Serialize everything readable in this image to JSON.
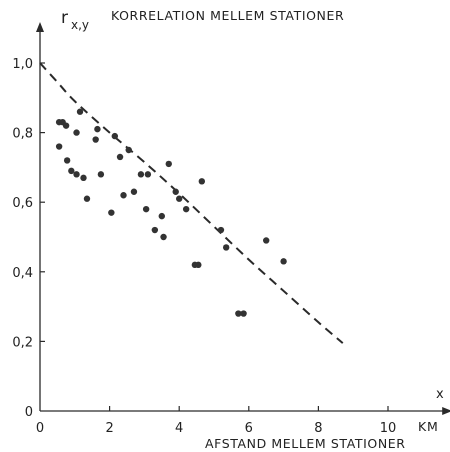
{
  "chart_data": {
    "type": "scatter",
    "title": "KORRELATION MELLEM STATIONER",
    "ylabel_main": "r",
    "ylabel_sub": "x,y",
    "xlabel": "AFSTAND MELLEM STATIONER",
    "x_axis_symbol": "x",
    "x_unit": "KM",
    "xlim": [
      0,
      11.5
    ],
    "ylim": [
      0,
      1.02
    ],
    "x_ticks": [
      {
        "value": 0,
        "label": "0"
      },
      {
        "value": 2,
        "label": "2"
      },
      {
        "value": 4,
        "label": "4"
      },
      {
        "value": 6,
        "label": "6"
      },
      {
        "value": 8,
        "label": "8"
      },
      {
        "value": 10,
        "label": "10"
      }
    ],
    "y_ticks": [
      {
        "value": 0,
        "label": "0"
      },
      {
        "value": 0.2,
        "label": "0,2"
      },
      {
        "value": 0.4,
        "label": "0,4"
      },
      {
        "value": 0.6,
        "label": "0,6"
      },
      {
        "value": 0.8,
        "label": "0,8"
      },
      {
        "value": 1.0,
        "label": "1,0"
      }
    ],
    "grid": false,
    "points": [
      {
        "x": 0.55,
        "y": 0.83
      },
      {
        "x": 0.65,
        "y": 0.83
      },
      {
        "x": 0.75,
        "y": 0.82
      },
      {
        "x": 0.55,
        "y": 0.76
      },
      {
        "x": 0.78,
        "y": 0.72
      },
      {
        "x": 0.9,
        "y": 0.69
      },
      {
        "x": 1.05,
        "y": 0.68
      },
      {
        "x": 1.05,
        "y": 0.8
      },
      {
        "x": 1.15,
        "y": 0.86
      },
      {
        "x": 1.25,
        "y": 0.67
      },
      {
        "x": 1.35,
        "y": 0.61
      },
      {
        "x": 1.6,
        "y": 0.78
      },
      {
        "x": 1.65,
        "y": 0.81
      },
      {
        "x": 1.75,
        "y": 0.68
      },
      {
        "x": 2.05,
        "y": 0.57
      },
      {
        "x": 2.15,
        "y": 0.79
      },
      {
        "x": 2.3,
        "y": 0.73
      },
      {
        "x": 2.4,
        "y": 0.62
      },
      {
        "x": 2.55,
        "y": 0.75
      },
      {
        "x": 2.7,
        "y": 0.63
      },
      {
        "x": 2.9,
        "y": 0.68
      },
      {
        "x": 3.05,
        "y": 0.58
      },
      {
        "x": 3.1,
        "y": 0.68
      },
      {
        "x": 3.3,
        "y": 0.52
      },
      {
        "x": 3.5,
        "y": 0.56
      },
      {
        "x": 3.55,
        "y": 0.5
      },
      {
        "x": 3.7,
        "y": 0.71
      },
      {
        "x": 3.9,
        "y": 0.63
      },
      {
        "x": 4.0,
        "y": 0.61
      },
      {
        "x": 4.2,
        "y": 0.58
      },
      {
        "x": 4.45,
        "y": 0.42
      },
      {
        "x": 4.55,
        "y": 0.42
      },
      {
        "x": 4.65,
        "y": 0.66
      },
      {
        "x": 5.2,
        "y": 0.52
      },
      {
        "x": 5.35,
        "y": 0.47
      },
      {
        "x": 5.7,
        "y": 0.28
      },
      {
        "x": 5.85,
        "y": 0.28
      },
      {
        "x": 6.5,
        "y": 0.49
      },
      {
        "x": 7.0,
        "y": 0.43
      }
    ],
    "trend_curve": {
      "style": "dashed",
      "x": [
        0,
        0.5,
        1,
        2,
        3,
        4,
        5,
        6,
        7,
        8,
        8.7
      ],
      "y": [
        1.0,
        0.945,
        0.89,
        0.8,
        0.715,
        0.625,
        0.53,
        0.435,
        0.345,
        0.255,
        0.195
      ]
    }
  }
}
